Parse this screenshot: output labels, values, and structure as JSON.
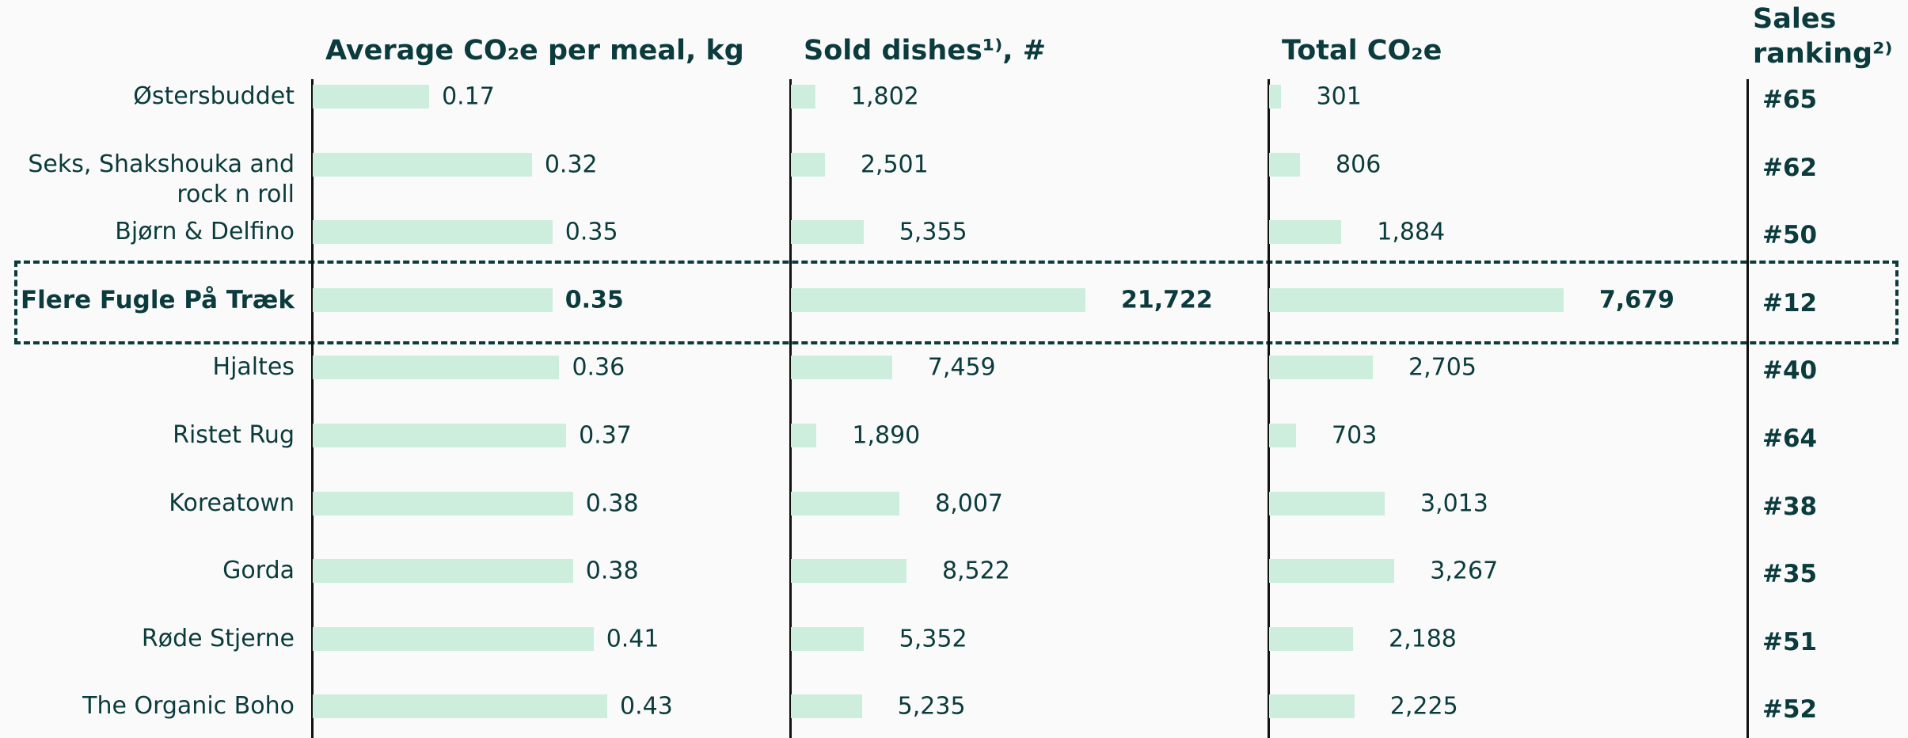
{
  "chart_data": {
    "type": "bar",
    "orientation": "horizontal",
    "categories": [
      "Østersbuddet",
      "Seks, Shakshouka and rock n roll",
      "Bjørn & Delfino",
      "Flere Fugle På Træk",
      "Hjaltes",
      "Ristet Rug",
      "Koreatown",
      "Gorda",
      "Røde Stjerne",
      "The Organic Boho"
    ],
    "highlight": 3,
    "series": [
      {
        "name": "Average CO₂e per meal, kg",
        "color": "#cdeedd",
        "values": [
          0.17,
          0.32,
          0.35,
          0.35,
          0.36,
          0.37,
          0.38,
          0.38,
          0.41,
          0.43
        ]
      },
      {
        "name": "Sold dishes¹⁾, #",
        "color": "#cdeedd",
        "values": [
          1802,
          2501,
          5355,
          21722,
          7459,
          1890,
          8007,
          8522,
          5352,
          5235
        ],
        "value_labels": [
          "1,802",
          "2,501",
          "5,355",
          "21,722",
          "7,459",
          "1,890",
          "8,007",
          "8,522",
          "5,352",
          "5,235"
        ]
      },
      {
        "name": "Total CO₂e",
        "color": "#cdeedd",
        "values": [
          301,
          806,
          1884,
          7679,
          2705,
          703,
          3013,
          3267,
          2188,
          2225
        ],
        "value_labels": [
          "301",
          "806",
          "1,884",
          "7,679",
          "2,705",
          "703",
          "3,013",
          "3,267",
          "2,188",
          "2,225"
        ]
      }
    ],
    "ranking_header": "Sales ranking²⁾",
    "rankings": [
      "#65",
      "#62",
      "#50",
      "#12",
      "#40",
      "#64",
      "#38",
      "#35",
      "#51",
      "#52"
    ]
  }
}
